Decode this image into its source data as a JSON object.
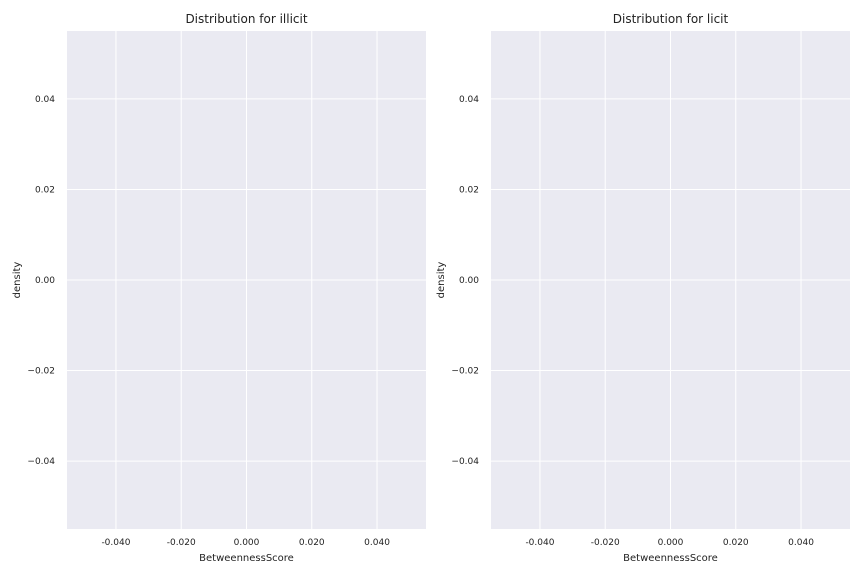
{
  "chart_data": [
    {
      "type": "area",
      "title": "Distribution for illicit",
      "xlabel": "BetweennessScore",
      "ylabel": "density",
      "xlim": [
        -0.055,
        0.055
      ],
      "ylim": [
        -0.055,
        0.055
      ],
      "xticks": [
        -0.04,
        -0.02,
        0.0,
        0.02,
        0.04
      ],
      "xtick_labels": [
        "-0.040",
        "-0.020",
        "0.000",
        "0.020",
        "0.040"
      ],
      "yticks": [
        0.04,
        0.02,
        0.0,
        -0.02,
        -0.04
      ],
      "ytick_labels": [
        "0.04",
        "0.02",
        "0.00",
        "−0.02",
        "−0.04"
      ],
      "series": [],
      "grid": true,
      "background": "#eaeaf2",
      "grid_color": "#ffffff"
    },
    {
      "type": "area",
      "title": "Distribution for licit",
      "xlabel": "BetweennessScore",
      "ylabel": "density",
      "xlim": [
        -0.055,
        0.055
      ],
      "ylim": [
        -0.055,
        0.055
      ],
      "xticks": [
        -0.04,
        -0.02,
        0.0,
        0.02,
        0.04
      ],
      "xtick_labels": [
        "-0.040",
        "-0.020",
        "0.000",
        "0.020",
        "0.040"
      ],
      "yticks": [
        0.04,
        0.02,
        0.0,
        -0.02,
        -0.04
      ],
      "ytick_labels": [
        "0.04",
        "0.02",
        "0.00",
        "−0.02",
        "−0.04"
      ],
      "series": [],
      "grid": true,
      "background": "#eaeaf2",
      "grid_color": "#ffffff"
    }
  ]
}
